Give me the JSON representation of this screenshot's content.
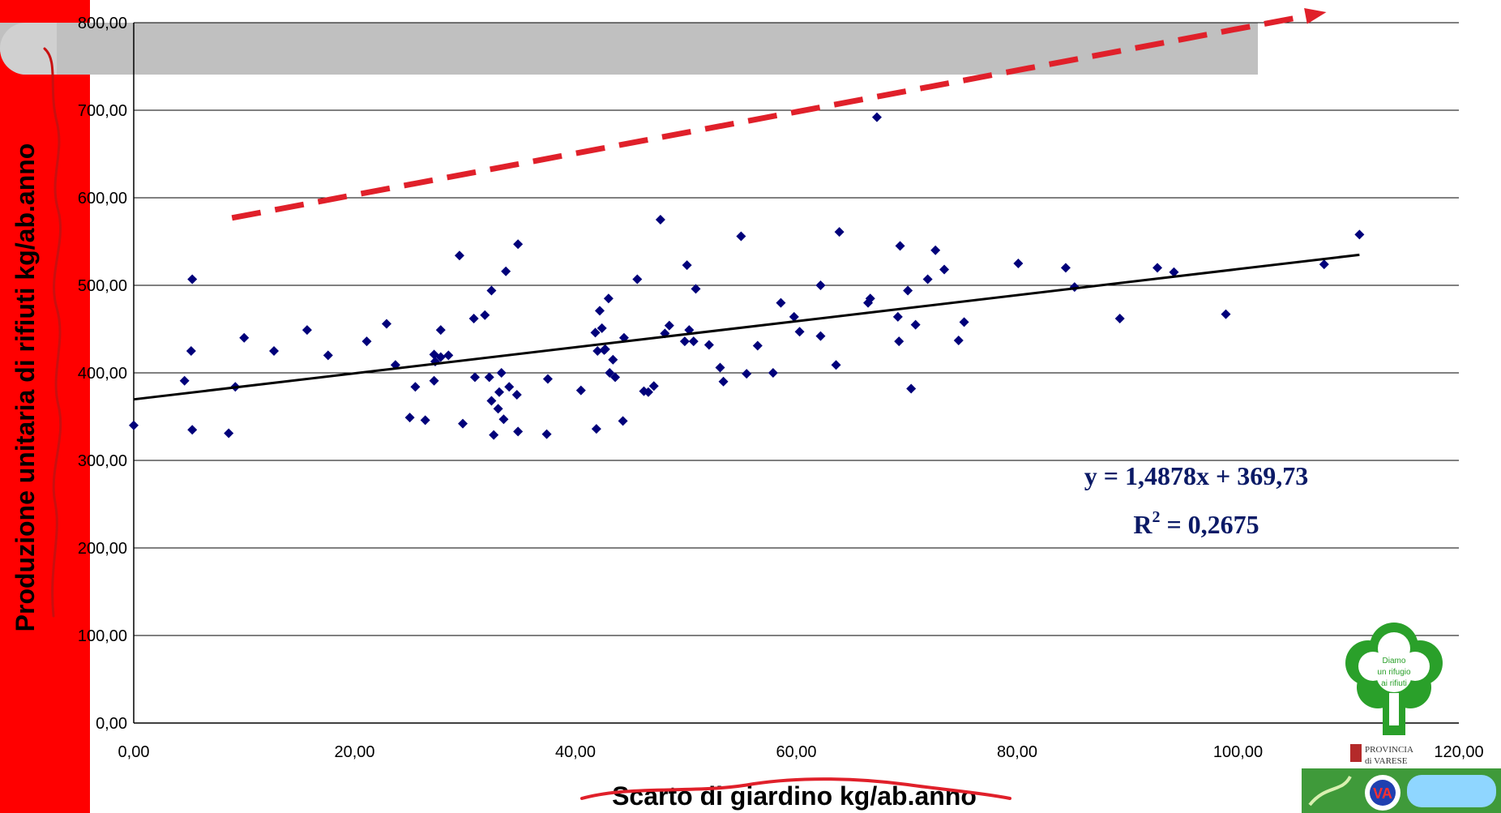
{
  "chart_data": {
    "type": "scatter",
    "title": "",
    "xlabel": "Scarto di giardino kg/ab.anno",
    "ylabel": "Produzione unitaria di rifiuti kg/ab.anno",
    "xlim": [
      0,
      120
    ],
    "ylim": [
      0,
      800
    ],
    "x_ticks": [
      "0,00",
      "20,00",
      "40,00",
      "60,00",
      "80,00",
      "100,00",
      "120,00"
    ],
    "y_ticks": [
      "0,00",
      "100,00",
      "200,00",
      "300,00",
      "400,00",
      "500,00",
      "600,00",
      "700,00",
      "800,00"
    ],
    "grid": true,
    "marker_color": "#00007a",
    "points": [
      [
        0.0,
        340
      ],
      [
        4.6,
        391
      ],
      [
        5.2,
        425
      ],
      [
        5.3,
        507
      ],
      [
        5.3,
        335
      ],
      [
        8.6,
        331
      ],
      [
        9.2,
        384
      ],
      [
        10.0,
        440
      ],
      [
        12.7,
        425
      ],
      [
        15.7,
        449
      ],
      [
        17.6,
        420
      ],
      [
        21.1,
        436
      ],
      [
        22.9,
        456
      ],
      [
        23.7,
        409
      ],
      [
        25.0,
        349
      ],
      [
        25.5,
        384
      ],
      [
        26.4,
        346
      ],
      [
        27.2,
        391
      ],
      [
        27.2,
        421
      ],
      [
        27.3,
        413
      ],
      [
        27.8,
        418
      ],
      [
        27.8,
        449
      ],
      [
        28.5,
        420
      ],
      [
        29.5,
        534
      ],
      [
        29.8,
        342
      ],
      [
        30.8,
        462
      ],
      [
        30.9,
        395
      ],
      [
        31.8,
        466
      ],
      [
        32.2,
        395
      ],
      [
        32.4,
        494
      ],
      [
        32.4,
        368
      ],
      [
        32.6,
        329
      ],
      [
        33.0,
        359
      ],
      [
        33.1,
        378
      ],
      [
        33.3,
        400
      ],
      [
        33.5,
        347
      ],
      [
        33.7,
        516
      ],
      [
        34.0,
        384
      ],
      [
        34.7,
        375
      ],
      [
        34.8,
        333
      ],
      [
        34.8,
        547
      ],
      [
        37.4,
        330
      ],
      [
        37.5,
        393
      ],
      [
        40.5,
        380
      ],
      [
        41.8,
        446
      ],
      [
        41.9,
        336
      ],
      [
        42.0,
        425
      ],
      [
        42.2,
        471
      ],
      [
        42.4,
        451
      ],
      [
        42.6,
        426
      ],
      [
        42.7,
        427
      ],
      [
        43.0,
        485
      ],
      [
        43.1,
        400
      ],
      [
        43.4,
        415
      ],
      [
        43.6,
        395
      ],
      [
        44.3,
        345
      ],
      [
        44.4,
        440
      ],
      [
        45.6,
        507
      ],
      [
        46.2,
        379
      ],
      [
        46.6,
        378
      ],
      [
        47.1,
        385
      ],
      [
        47.7,
        575
      ],
      [
        48.1,
        445
      ],
      [
        48.5,
        454
      ],
      [
        49.9,
        436
      ],
      [
        50.1,
        523
      ],
      [
        50.3,
        449
      ],
      [
        50.7,
        436
      ],
      [
        50.9,
        496
      ],
      [
        52.1,
        432
      ],
      [
        53.1,
        406
      ],
      [
        53.4,
        390
      ],
      [
        55.0,
        556
      ],
      [
        55.5,
        399
      ],
      [
        56.5,
        431
      ],
      [
        57.9,
        400
      ],
      [
        58.6,
        480
      ],
      [
        59.8,
        464
      ],
      [
        60.3,
        447
      ],
      [
        62.2,
        500
      ],
      [
        62.2,
        442
      ],
      [
        63.6,
        409
      ],
      [
        63.9,
        561
      ],
      [
        66.5,
        480
      ],
      [
        66.7,
        485
      ],
      [
        67.3,
        692
      ],
      [
        69.2,
        464
      ],
      [
        69.3,
        436
      ],
      [
        69.4,
        545
      ],
      [
        70.1,
        494
      ],
      [
        70.4,
        382
      ],
      [
        70.8,
        455
      ],
      [
        71.9,
        507
      ],
      [
        72.6,
        540
      ],
      [
        73.4,
        518
      ],
      [
        74.7,
        437
      ],
      [
        75.2,
        458
      ],
      [
        80.1,
        525
      ],
      [
        84.4,
        520
      ],
      [
        85.2,
        498
      ],
      [
        89.3,
        462
      ],
      [
        92.7,
        520
      ],
      [
        94.2,
        515
      ],
      [
        98.9,
        467
      ],
      [
        107.8,
        524
      ],
      [
        111.0,
        558
      ]
    ],
    "trendline": {
      "slope": 1.4878,
      "intercept": 369.73,
      "x_range": [
        0,
        111
      ],
      "equation": "y = 1,4878x + 369,73",
      "r2_prefix": "R",
      "r2_sup": "2",
      "r2_value": " = 0,2675",
      "color": "#000000"
    },
    "trend_arrow": {
      "from": [
        8.9,
        577
      ],
      "to": [
        108,
        812
      ],
      "color": "#e0202a",
      "style": "dashed"
    }
  },
  "colors": {
    "side_bar": "#ff0000",
    "banner": "#c0c0c0",
    "annotation": "#e0202a",
    "equation": "#0b1a66",
    "logo_green": "#2aa02a"
  },
  "logos": {
    "tree_icon": "tree-logo-icon",
    "tree_text": [
      "Diamo",
      "un rifugio",
      "ai rifiuti"
    ],
    "province": "PROVINCIA di VARESE",
    "bottom_banner": "va-rifiuti-logo-icon"
  }
}
